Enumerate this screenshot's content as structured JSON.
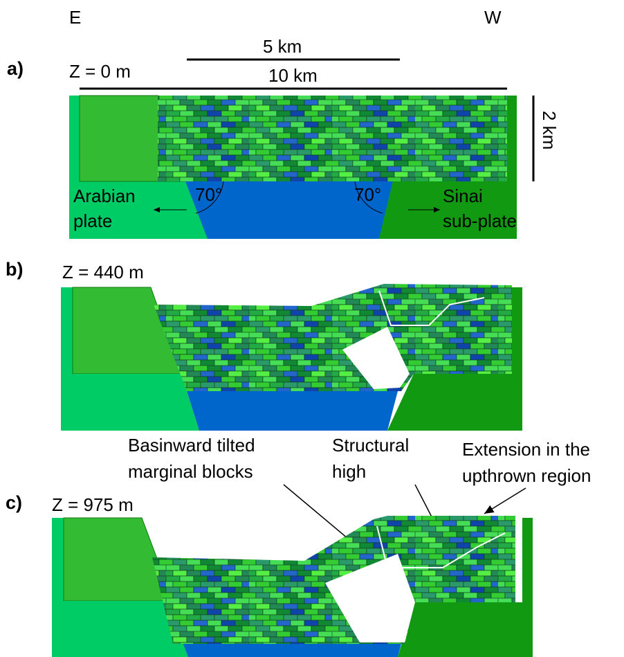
{
  "compass": {
    "east": "E",
    "west": "W"
  },
  "panels": [
    {
      "label": "a)",
      "depth": "Z = 0 m",
      "scale_short": "5 km",
      "scale_long": "10 km",
      "scale_vertical": "2 km",
      "angle_left": "70°",
      "angle_right": "70°",
      "left_plate": [
        "Arabian",
        "plate"
      ],
      "right_plate": [
        "Sinai",
        "sub-plate"
      ]
    },
    {
      "label": "b)",
      "depth": "Z = 440 m"
    },
    {
      "label": "c)",
      "depth": "Z = 975 m"
    }
  ],
  "annotations": [
    {
      "lines": [
        "Basinward tilted",
        "marginal blocks"
      ]
    },
    {
      "lines": [
        "Structural",
        "high"
      ]
    },
    {
      "lines": [
        "Extension in the",
        "upthrown region"
      ]
    }
  ]
}
